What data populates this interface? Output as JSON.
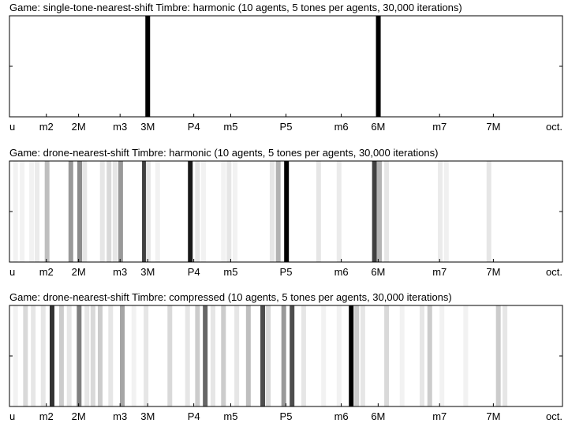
{
  "chart_data": [
    {
      "type": "strip",
      "title": "Game: single-tone-nearest-shift Timbre: harmonic (10 agents, 5 tones per agents, 30,000 iterations)",
      "xlim": [
        1,
        2
      ],
      "xticks": [
        {
          "value": 1,
          "label": "u"
        },
        {
          "value": 1.0667,
          "label": "m2"
        },
        {
          "value": 1.125,
          "label": "2M"
        },
        {
          "value": 1.2,
          "label": "m3"
        },
        {
          "value": 1.25,
          "label": "3M"
        },
        {
          "value": 1.3333,
          "label": "P4"
        },
        {
          "value": 1.4,
          "label": "m5"
        },
        {
          "value": 1.5,
          "label": "P5"
        },
        {
          "value": 1.6,
          "label": "m6"
        },
        {
          "value": 1.6667,
          "label": "6M"
        },
        {
          "value": 1.7778,
          "label": "m7"
        },
        {
          "value": 1.875,
          "label": "7M"
        },
        {
          "value": 2,
          "label": "oct."
        }
      ],
      "x": [
        1.25,
        1.667
      ],
      "values": [
        1,
        1
      ]
    },
    {
      "type": "strip",
      "title": "Game: drone-nearest-shift Timbre: harmonic (10 agents, 5 tones per agents, 30,000 iterations)",
      "xlim": [
        1,
        2
      ],
      "xticks": [
        {
          "value": 1,
          "label": "u"
        },
        {
          "value": 1.0667,
          "label": "m2"
        },
        {
          "value": 1.125,
          "label": "2M"
        },
        {
          "value": 1.2,
          "label": "m3"
        },
        {
          "value": 1.25,
          "label": "3M"
        },
        {
          "value": 1.3333,
          "label": "P4"
        },
        {
          "value": 1.4,
          "label": "m5"
        },
        {
          "value": 1.5,
          "label": "P5"
        },
        {
          "value": 1.6,
          "label": "m6"
        },
        {
          "value": 1.6667,
          "label": "6M"
        },
        {
          "value": 1.7778,
          "label": "m7"
        },
        {
          "value": 1.875,
          "label": "7M"
        },
        {
          "value": 2,
          "label": "oct."
        }
      ],
      "x": [
        1.011,
        1.023,
        1.04,
        1.05,
        1.068,
        1.111,
        1.127,
        1.136,
        1.168,
        1.18,
        1.191,
        1.201,
        1.244,
        1.251,
        1.268,
        1.327,
        1.34,
        1.351,
        1.387,
        1.397,
        1.408,
        1.475,
        1.486,
        1.501,
        1.559,
        1.596,
        1.66,
        1.669,
        1.682,
        1.779,
        1.79,
        1.867
      ],
      "values": [
        0.05,
        0.05,
        0.05,
        0.08,
        0.25,
        0.4,
        0.45,
        0.1,
        0.1,
        0.15,
        0.1,
        0.4,
        0.75,
        0.1,
        0.05,
        0.9,
        0.1,
        0.05,
        0.05,
        0.1,
        0.05,
        0.1,
        0.3,
        1,
        0.1,
        0.08,
        0.75,
        0.3,
        0.1,
        0.08,
        0.06,
        0.1
      ]
    },
    {
      "type": "strip",
      "title": "Game: drone-nearest-shift Timbre: compressed (10 agents, 5 tones per agents, 30,000 iterations)",
      "xlim": [
        1,
        2
      ],
      "xticks": [
        {
          "value": 1,
          "label": "u"
        },
        {
          "value": 1.0667,
          "label": "m2"
        },
        {
          "value": 1.125,
          "label": "2M"
        },
        {
          "value": 1.2,
          "label": "m3"
        },
        {
          "value": 1.25,
          "label": "3M"
        },
        {
          "value": 1.3333,
          "label": "P4"
        },
        {
          "value": 1.4,
          "label": "m5"
        },
        {
          "value": 1.5,
          "label": "P5"
        },
        {
          "value": 1.6,
          "label": "m6"
        },
        {
          "value": 1.6667,
          "label": "6M"
        },
        {
          "value": 1.7778,
          "label": "m7"
        },
        {
          "value": 1.875,
          "label": "7M"
        },
        {
          "value": 2,
          "label": "oct."
        }
      ],
      "x": [
        1.011,
        1.029,
        1.043,
        1.061,
        1.077,
        1.094,
        1.108,
        1.126,
        1.14,
        1.151,
        1.164,
        1.183,
        1.204,
        1.225,
        1.247,
        1.29,
        1.322,
        1.34,
        1.354,
        1.368,
        1.387,
        1.411,
        1.432,
        1.458,
        1.468,
        1.496,
        1.511,
        1.532,
        1.568,
        1.596,
        1.618,
        1.628,
        1.639,
        1.682,
        1.71,
        1.746,
        1.76,
        1.782,
        1.825,
        1.884,
        1.896
      ],
      "values": [
        0.05,
        0.15,
        0.1,
        0.1,
        0.8,
        0.2,
        0.1,
        0.5,
        0.1,
        0.15,
        0.2,
        0.1,
        0.35,
        0.05,
        0.1,
        0.15,
        0.1,
        0.2,
        0.6,
        0.1,
        0.2,
        0.1,
        0.25,
        0.7,
        0.15,
        0.4,
        0.7,
        0.1,
        0.05,
        0.05,
        1,
        0.2,
        0.1,
        0.15,
        0.05,
        0.1,
        0.2,
        0.05,
        0.05,
        0.2,
        0.1
      ]
    }
  ]
}
